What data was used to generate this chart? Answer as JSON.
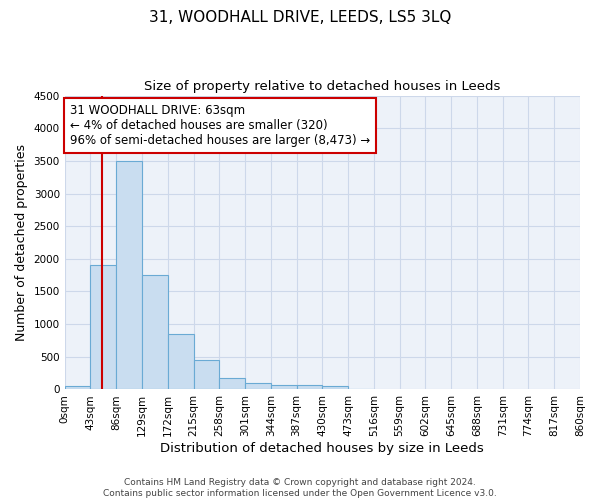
{
  "title": "31, WOODHALL DRIVE, LEEDS, LS5 3LQ",
  "subtitle": "Size of property relative to detached houses in Leeds",
  "xlabel": "Distribution of detached houses by size in Leeds",
  "ylabel": "Number of detached properties",
  "footer_line1": "Contains HM Land Registry data © Crown copyright and database right 2024.",
  "footer_line2": "Contains public sector information licensed under the Open Government Licence v3.0.",
  "annotation_title": "31 WOODHALL DRIVE: 63sqm",
  "annotation_line1": "← 4% of detached houses are smaller (320)",
  "annotation_line2": "96% of semi-detached houses are larger (8,473) →",
  "property_size_sqm": 63,
  "bar_edges": [
    0,
    43,
    86,
    129,
    172,
    215,
    258,
    301,
    344,
    387,
    430,
    473,
    516,
    559,
    602,
    645,
    688,
    731,
    774,
    817,
    860
  ],
  "bar_heights": [
    50,
    1900,
    3500,
    1750,
    850,
    450,
    175,
    100,
    75,
    75,
    50,
    10,
    0,
    0,
    0,
    0,
    0,
    0,
    0,
    0
  ],
  "bar_color": "#c9ddf0",
  "bar_edge_color": "#6aaad4",
  "vline_color": "#cc0000",
  "vline_x": 63,
  "annotation_box_color": "#ffffff",
  "annotation_box_edge_color": "#cc0000",
  "ylim": [
    0,
    4500
  ],
  "yticks": [
    0,
    500,
    1000,
    1500,
    2000,
    2500,
    3000,
    3500,
    4000,
    4500
  ],
  "grid_color": "#cdd8ea",
  "bg_color": "#edf2f9",
  "title_fontsize": 11,
  "subtitle_fontsize": 9.5,
  "tick_label_fontsize": 7.5,
  "xlabel_fontsize": 9.5,
  "ylabel_fontsize": 9,
  "annotation_fontsize": 8.5,
  "footer_fontsize": 6.5
}
